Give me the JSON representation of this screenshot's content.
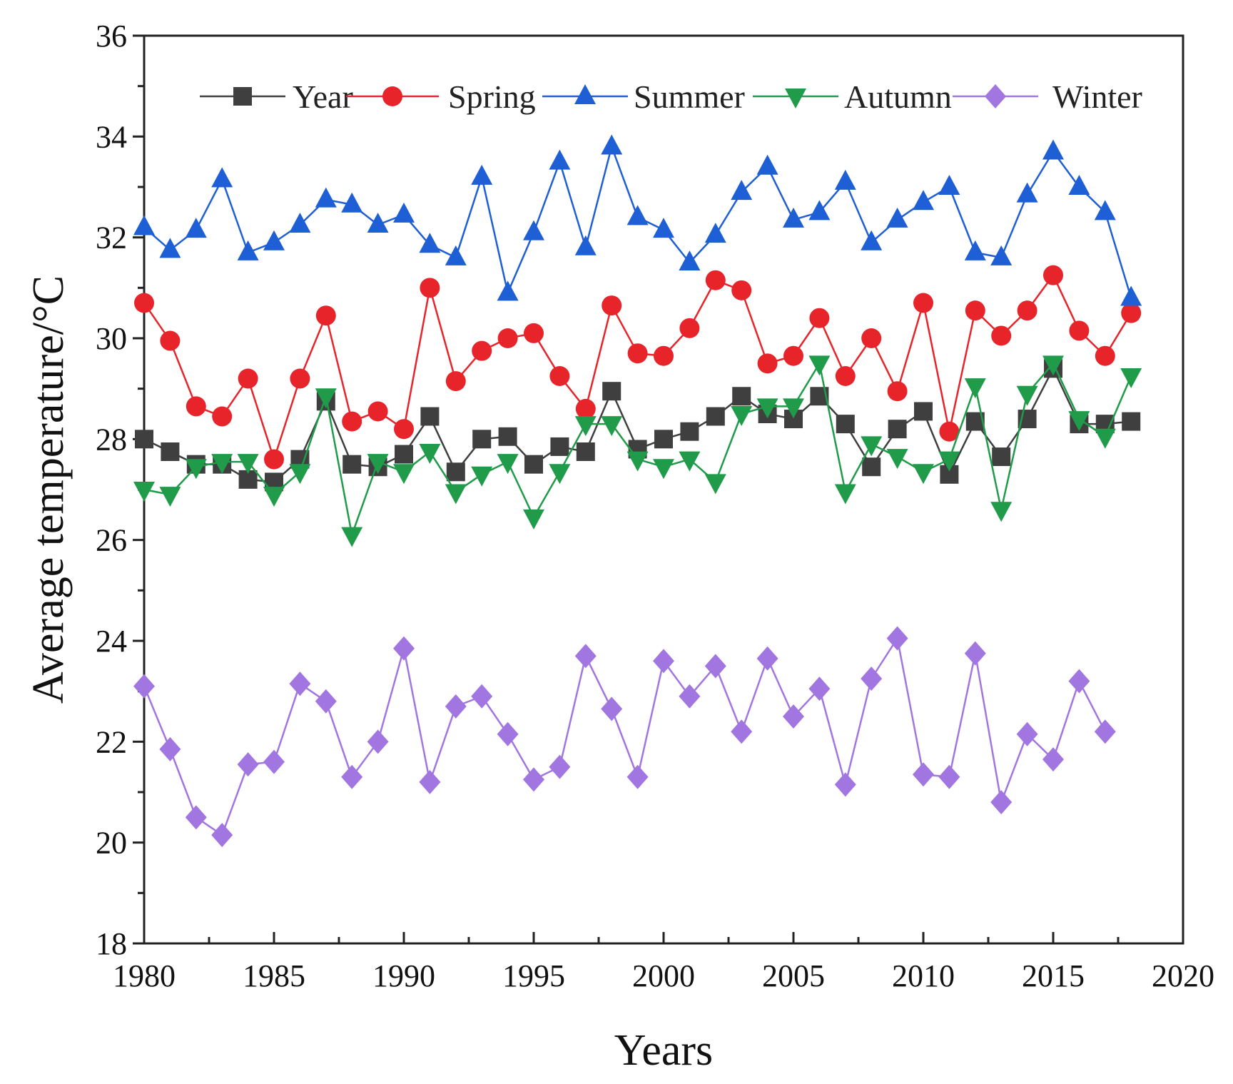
{
  "chart_data": {
    "type": "line",
    "xlabel": "Years",
    "ylabel": "Average temperature/°C",
    "xlim": [
      1980,
      2020
    ],
    "ylim": [
      18,
      36
    ],
    "x_ticks": [
      1980,
      1985,
      1990,
      1995,
      2000,
      2005,
      2010,
      2015,
      2020
    ],
    "y_ticks": [
      18,
      20,
      22,
      24,
      26,
      28,
      30,
      32,
      34,
      36
    ],
    "x_tick_labels": [
      "1980",
      "1985",
      "1990",
      "1995",
      "2000",
      "2005",
      "2010",
      "2015",
      "2020"
    ],
    "y_tick_labels": [
      "18",
      "20",
      "22",
      "24",
      "26",
      "28",
      "30",
      "32",
      "34",
      "36"
    ],
    "legend_position": "top",
    "grid": false,
    "x": [
      1980,
      1981,
      1982,
      1983,
      1984,
      1985,
      1986,
      1987,
      1988,
      1989,
      1990,
      1991,
      1992,
      1993,
      1994,
      1995,
      1996,
      1997,
      1998,
      1999,
      2000,
      2001,
      2002,
      2003,
      2004,
      2005,
      2006,
      2007,
      2008,
      2009,
      2010,
      2011,
      2012,
      2013,
      2014,
      2015,
      2016,
      2017,
      2018
    ],
    "series": [
      {
        "name": "Year",
        "color": "#3f3f3f",
        "marker": "square",
        "values": [
          28.0,
          27.75,
          27.5,
          27.5,
          27.2,
          27.15,
          27.6,
          28.75,
          27.5,
          27.45,
          27.7,
          28.45,
          27.35,
          28.0,
          28.05,
          27.5,
          27.85,
          27.75,
          28.95,
          27.8,
          28.0,
          28.15,
          28.45,
          28.85,
          28.5,
          28.4,
          28.85,
          28.3,
          27.45,
          28.2,
          28.55,
          27.3,
          28.35,
          27.65,
          28.4,
          29.4,
          28.3,
          28.3,
          28.35
        ]
      },
      {
        "name": "Spring",
        "color": "#e8242b",
        "marker": "circle",
        "values": [
          30.7,
          29.95,
          28.65,
          28.45,
          29.2,
          27.6,
          29.2,
          30.45,
          28.35,
          28.55,
          28.2,
          31.0,
          29.15,
          29.75,
          30.0,
          30.1,
          29.25,
          28.6,
          30.65,
          29.7,
          29.65,
          30.2,
          31.15,
          30.95,
          29.5,
          29.65,
          30.4,
          29.25,
          30.0,
          28.95,
          30.7,
          28.15,
          30.55,
          30.05,
          30.55,
          31.25,
          30.15,
          29.65,
          30.5
        ]
      },
      {
        "name": "Summer",
        "color": "#1f5fd6",
        "marker": "triangle-up",
        "values": [
          32.2,
          31.75,
          32.15,
          33.15,
          31.7,
          31.9,
          32.25,
          32.75,
          32.65,
          32.25,
          32.45,
          31.85,
          31.6,
          33.2,
          30.9,
          32.1,
          33.5,
          31.8,
          33.8,
          32.4,
          32.15,
          31.5,
          32.05,
          32.9,
          33.4,
          32.35,
          32.5,
          33.1,
          31.9,
          32.35,
          32.7,
          33.0,
          31.7,
          31.6,
          32.85,
          33.7,
          33.0,
          32.5,
          30.8
        ]
      },
      {
        "name": "Autumn",
        "color": "#1f9b4a",
        "marker": "triangle-down",
        "values": [
          27.0,
          26.9,
          27.45,
          27.55,
          27.55,
          26.9,
          27.35,
          28.85,
          26.1,
          27.55,
          27.35,
          27.75,
          26.95,
          27.3,
          27.55,
          26.45,
          27.35,
          28.3,
          28.3,
          27.6,
          27.45,
          27.6,
          27.15,
          28.5,
          28.65,
          28.65,
          29.5,
          26.95,
          27.9,
          27.65,
          27.35,
          27.6,
          29.05,
          26.6,
          28.9,
          29.5,
          28.4,
          28.05,
          29.25
        ]
      },
      {
        "name": "Winter",
        "color": "#a276e0",
        "marker": "diamond",
        "values": [
          23.1,
          21.85,
          20.5,
          20.15,
          21.55,
          21.6,
          23.15,
          22.8,
          21.3,
          22.0,
          23.85,
          21.2,
          22.7,
          22.9,
          22.15,
          21.25,
          21.5,
          23.7,
          22.65,
          21.3,
          23.6,
          22.9,
          23.5,
          22.2,
          23.65,
          22.5,
          23.05,
          21.15,
          23.25,
          24.05,
          21.35,
          21.3,
          23.75,
          20.8,
          22.15,
          21.65,
          23.2,
          22.2,
          null
        ]
      }
    ]
  }
}
